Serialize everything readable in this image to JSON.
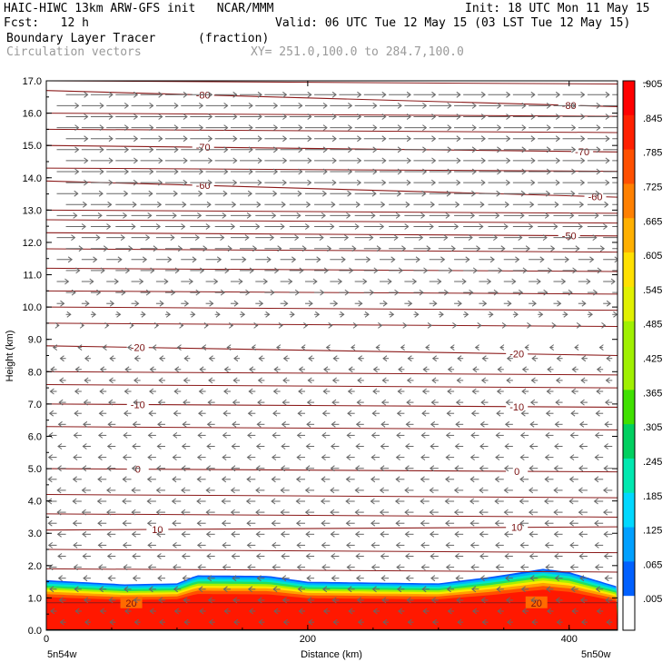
{
  "header": {
    "line1_left": "HAIC-HIWC 13km ARW-GFS init   NCAR/MMM",
    "line1_right": "Init: 18 UTC Mon 11 May 15",
    "line2_left": "Fcst:   12 h",
    "line2_right": "Valid: 06 UTC Tue 12 May 15 (03 LST Tue 12 May 15)",
    "field_name": "Boundary Layer Tracer",
    "field_units": "(fraction)",
    "vector_label": "Circulation vectors",
    "xsec_label": "XY= 251.0,100.0 to 284.7,100.0"
  },
  "chart_data": {
    "type": "heatmap",
    "ylabel": "Height (km)",
    "xlabel": "Distance (km)",
    "x_start_label": "5n54w",
    "x_end_label": "5n50w",
    "xlim": [
      0,
      437
    ],
    "ylim": [
      0,
      17
    ],
    "x_ticks": [
      0,
      200,
      400
    ],
    "y_ticks": [
      "0.0",
      "1.0",
      "2.0",
      "3.0",
      "4.0",
      "5.0",
      "6.0",
      "7.0",
      "8.0",
      "9.0",
      "10.0",
      "11.0",
      "12.0",
      "13.0",
      "14.0",
      "15.0",
      "16.0",
      "17.0"
    ],
    "colorbar_labels": [
      ".005",
      ".065",
      ".125",
      ".185",
      ".245",
      ".305",
      ".365",
      ".425",
      ".485",
      ".545",
      ".605",
      ".665",
      ".725",
      ".785",
      ".845",
      ".905"
    ],
    "colorbar_top_label": "–",
    "colorbar_colors": [
      "#ffffff",
      "#0060ff",
      "#00a0ff",
      "#00d8ff",
      "#00e8b0",
      "#00d060",
      "#40e000",
      "#a0f000",
      "#e0f000",
      "#ffe000",
      "#ffb000",
      "#ff8000",
      "#ff5000",
      "#ff2000",
      "#ff0000"
    ],
    "tracer_top_profile": [
      {
        "x": 0,
        "y": 1.55
      },
      {
        "x": 60,
        "y": 1.42
      },
      {
        "x": 100,
        "y": 1.45
      },
      {
        "x": 115,
        "y": 1.7
      },
      {
        "x": 170,
        "y": 1.68
      },
      {
        "x": 200,
        "y": 1.5
      },
      {
        "x": 300,
        "y": 1.45
      },
      {
        "x": 340,
        "y": 1.65
      },
      {
        "x": 380,
        "y": 1.9
      },
      {
        "x": 400,
        "y": 1.8
      },
      {
        "x": 437,
        "y": 1.35
      }
    ],
    "isotherms": [
      {
        "label": "-80",
        "y_left": 16.7,
        "y_right": 16.2,
        "label_x": [
          120,
          400
        ]
      },
      {
        "label": "-70",
        "y_left": 15.0,
        "y_right": 14.8,
        "label_x": [
          120,
          410
        ]
      },
      {
        "label": "-60",
        "y_left": 13.9,
        "y_right": 13.4,
        "label_x": [
          120,
          420
        ]
      },
      {
        "label": "-50",
        "y_left": 12.3,
        "y_right": 12.2,
        "label_x": [
          400,
          500
        ]
      },
      {
        "label": "-20",
        "y_left": 8.8,
        "y_right": 8.5,
        "label_x": [
          70,
          360
        ]
      },
      {
        "label": "-10",
        "y_left": 7.0,
        "y_right": 6.9,
        "label_x": [
          70,
          360
        ]
      },
      {
        "label": "0",
        "y_left": 5.0,
        "y_right": 4.9,
        "label_x": [
          70,
          360
        ]
      },
      {
        "label": "10",
        "y_left": 3.1,
        "y_right": 3.2,
        "label_x": [
          85,
          360
        ]
      },
      {
        "label": "20",
        "y_left": 0.85,
        "y_right": 0.85,
        "label_x": [
          65,
          375
        ]
      }
    ],
    "extra_isolines_y": [
      17.0,
      16.0,
      15.5,
      14.3,
      13.0,
      12.7,
      11.8,
      11.2,
      10.5,
      10.0,
      9.5,
      8.0,
      7.6,
      6.3,
      4.2,
      3.6,
      2.5,
      1.9
    ],
    "wind_profile": [
      {
        "z": 16.5,
        "u": 1.0
      },
      {
        "z": 14.0,
        "u": 1.0
      },
      {
        "z": 12.5,
        "u": 0.9
      },
      {
        "z": 11.0,
        "u": 0.6
      },
      {
        "z": 10.0,
        "u": 0.3
      },
      {
        "z": 9.3,
        "u": 0.05
      },
      {
        "z": 8.5,
        "u": -0.25
      },
      {
        "z": 6.0,
        "u": -0.35
      },
      {
        "z": 4.0,
        "u": -0.4
      },
      {
        "z": 2.0,
        "u": -0.35
      },
      {
        "z": 1.0,
        "u": -0.3
      },
      {
        "z": 0.2,
        "u": -0.25
      }
    ]
  }
}
